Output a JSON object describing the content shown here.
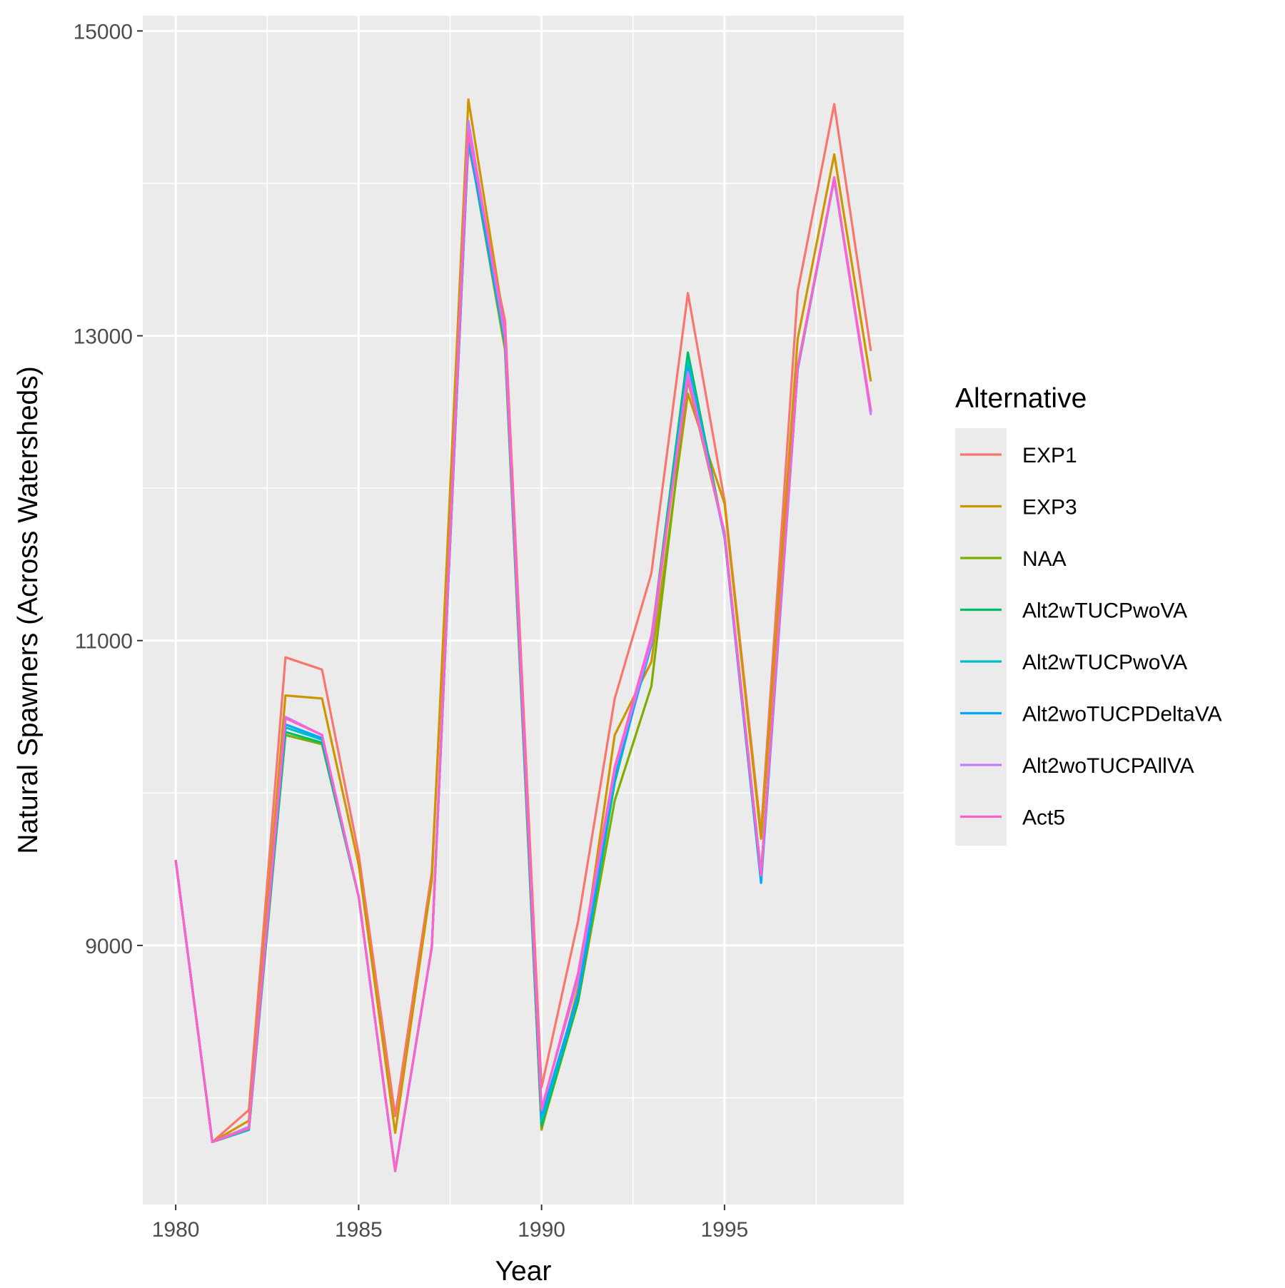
{
  "chart_data": {
    "type": "line",
    "xlabel": "Year",
    "ylabel": "Natural Spawners (Across Watersheds)",
    "xlim": [
      1979.1,
      1999.9
    ],
    "ylim": [
      7300,
      15100
    ],
    "x_ticks": [
      1980,
      1985,
      1990,
      1995
    ],
    "x_tick_labels": [
      "1980",
      "1985",
      "1990",
      "1995"
    ],
    "x_minor_ticks": [
      1982.5,
      1987.5,
      1992.5,
      1997.5
    ],
    "y_ticks": [
      9000,
      11000,
      13000,
      15000
    ],
    "y_tick_labels": [
      "9000",
      "11000",
      "13000",
      "15000"
    ],
    "y_minor_ticks": [
      8000,
      10000,
      12000,
      14000
    ],
    "grid": true,
    "legend": {
      "title": "Alternative",
      "position": "right"
    },
    "x": [
      1980,
      1981,
      1982,
      1983,
      1984,
      1985,
      1986,
      1987,
      1988,
      1989,
      1990,
      1991,
      1992,
      1993,
      1994,
      1995,
      1996,
      1997,
      1998,
      1999
    ],
    "series": [
      {
        "name": "EXP1",
        "color": "#F8766D",
        "values": [
          9560,
          7710,
          7920,
          10890,
          10810,
          9600,
          7880,
          9480,
          14250,
          13100,
          8070,
          9160,
          10620,
          11440,
          13280,
          11920,
          9740,
          13290,
          14520,
          12900
        ]
      },
      {
        "name": "EXP3",
        "color": "#CD9600",
        "values": [
          9560,
          7710,
          7850,
          10640,
          10620,
          9530,
          7770,
          9430,
          14550,
          13050,
          7790,
          8720,
          10380,
          10860,
          12620,
          11900,
          9700,
          12980,
          14190,
          12700
        ]
      },
      {
        "name": "NAA",
        "color": "#7CAE00",
        "values": [
          9560,
          7710,
          7790,
          10380,
          10320,
          9320,
          7520,
          8990,
          14290,
          12910,
          7800,
          8630,
          9950,
          10700,
          12710,
          11700,
          9470,
          12800,
          14030,
          12500
        ]
      },
      {
        "name": "Alt2wTUCPwoVA",
        "color": "#00BE67",
        "values": [
          9560,
          7710,
          7790,
          10400,
          10330,
          9320,
          7520,
          8990,
          14290,
          12960,
          7820,
          8640,
          10070,
          11010,
          12890,
          11680,
          9470,
          12780,
          14030,
          12500
        ]
      },
      {
        "name": "Alt2wTUCPwoVA",
        "color": "#00BFC4",
        "values": [
          9560,
          7710,
          7790,
          10430,
          10350,
          9320,
          7520,
          8990,
          14290,
          12960,
          7850,
          8670,
          10090,
          10990,
          12830,
          11680,
          9460,
          12780,
          14030,
          12500
        ]
      },
      {
        "name": "Alt2woTUCPDeltaVA",
        "color": "#00A9FF",
        "values": [
          9560,
          7710,
          7800,
          10450,
          10360,
          9320,
          7520,
          8990,
          14290,
          12960,
          7880,
          8680,
          10110,
          10970,
          12790,
          11680,
          9410,
          12780,
          14030,
          12500
        ]
      },
      {
        "name": "Alt2woTUCPAllVA",
        "color": "#C77CFF",
        "values": [
          9560,
          7710,
          7810,
          10500,
          10380,
          9320,
          7520,
          8990,
          14410,
          12990,
          7930,
          8780,
          10150,
          10990,
          12760,
          11690,
          9460,
          12790,
          14030,
          12480
        ]
      },
      {
        "name": "Act5",
        "color": "#FF61CC",
        "values": [
          9560,
          7710,
          7800,
          10490,
          10380,
          9320,
          7520,
          8990,
          14340,
          13050,
          7920,
          8820,
          10170,
          11030,
          12720,
          11710,
          9460,
          12790,
          14040,
          12510
        ]
      }
    ]
  }
}
